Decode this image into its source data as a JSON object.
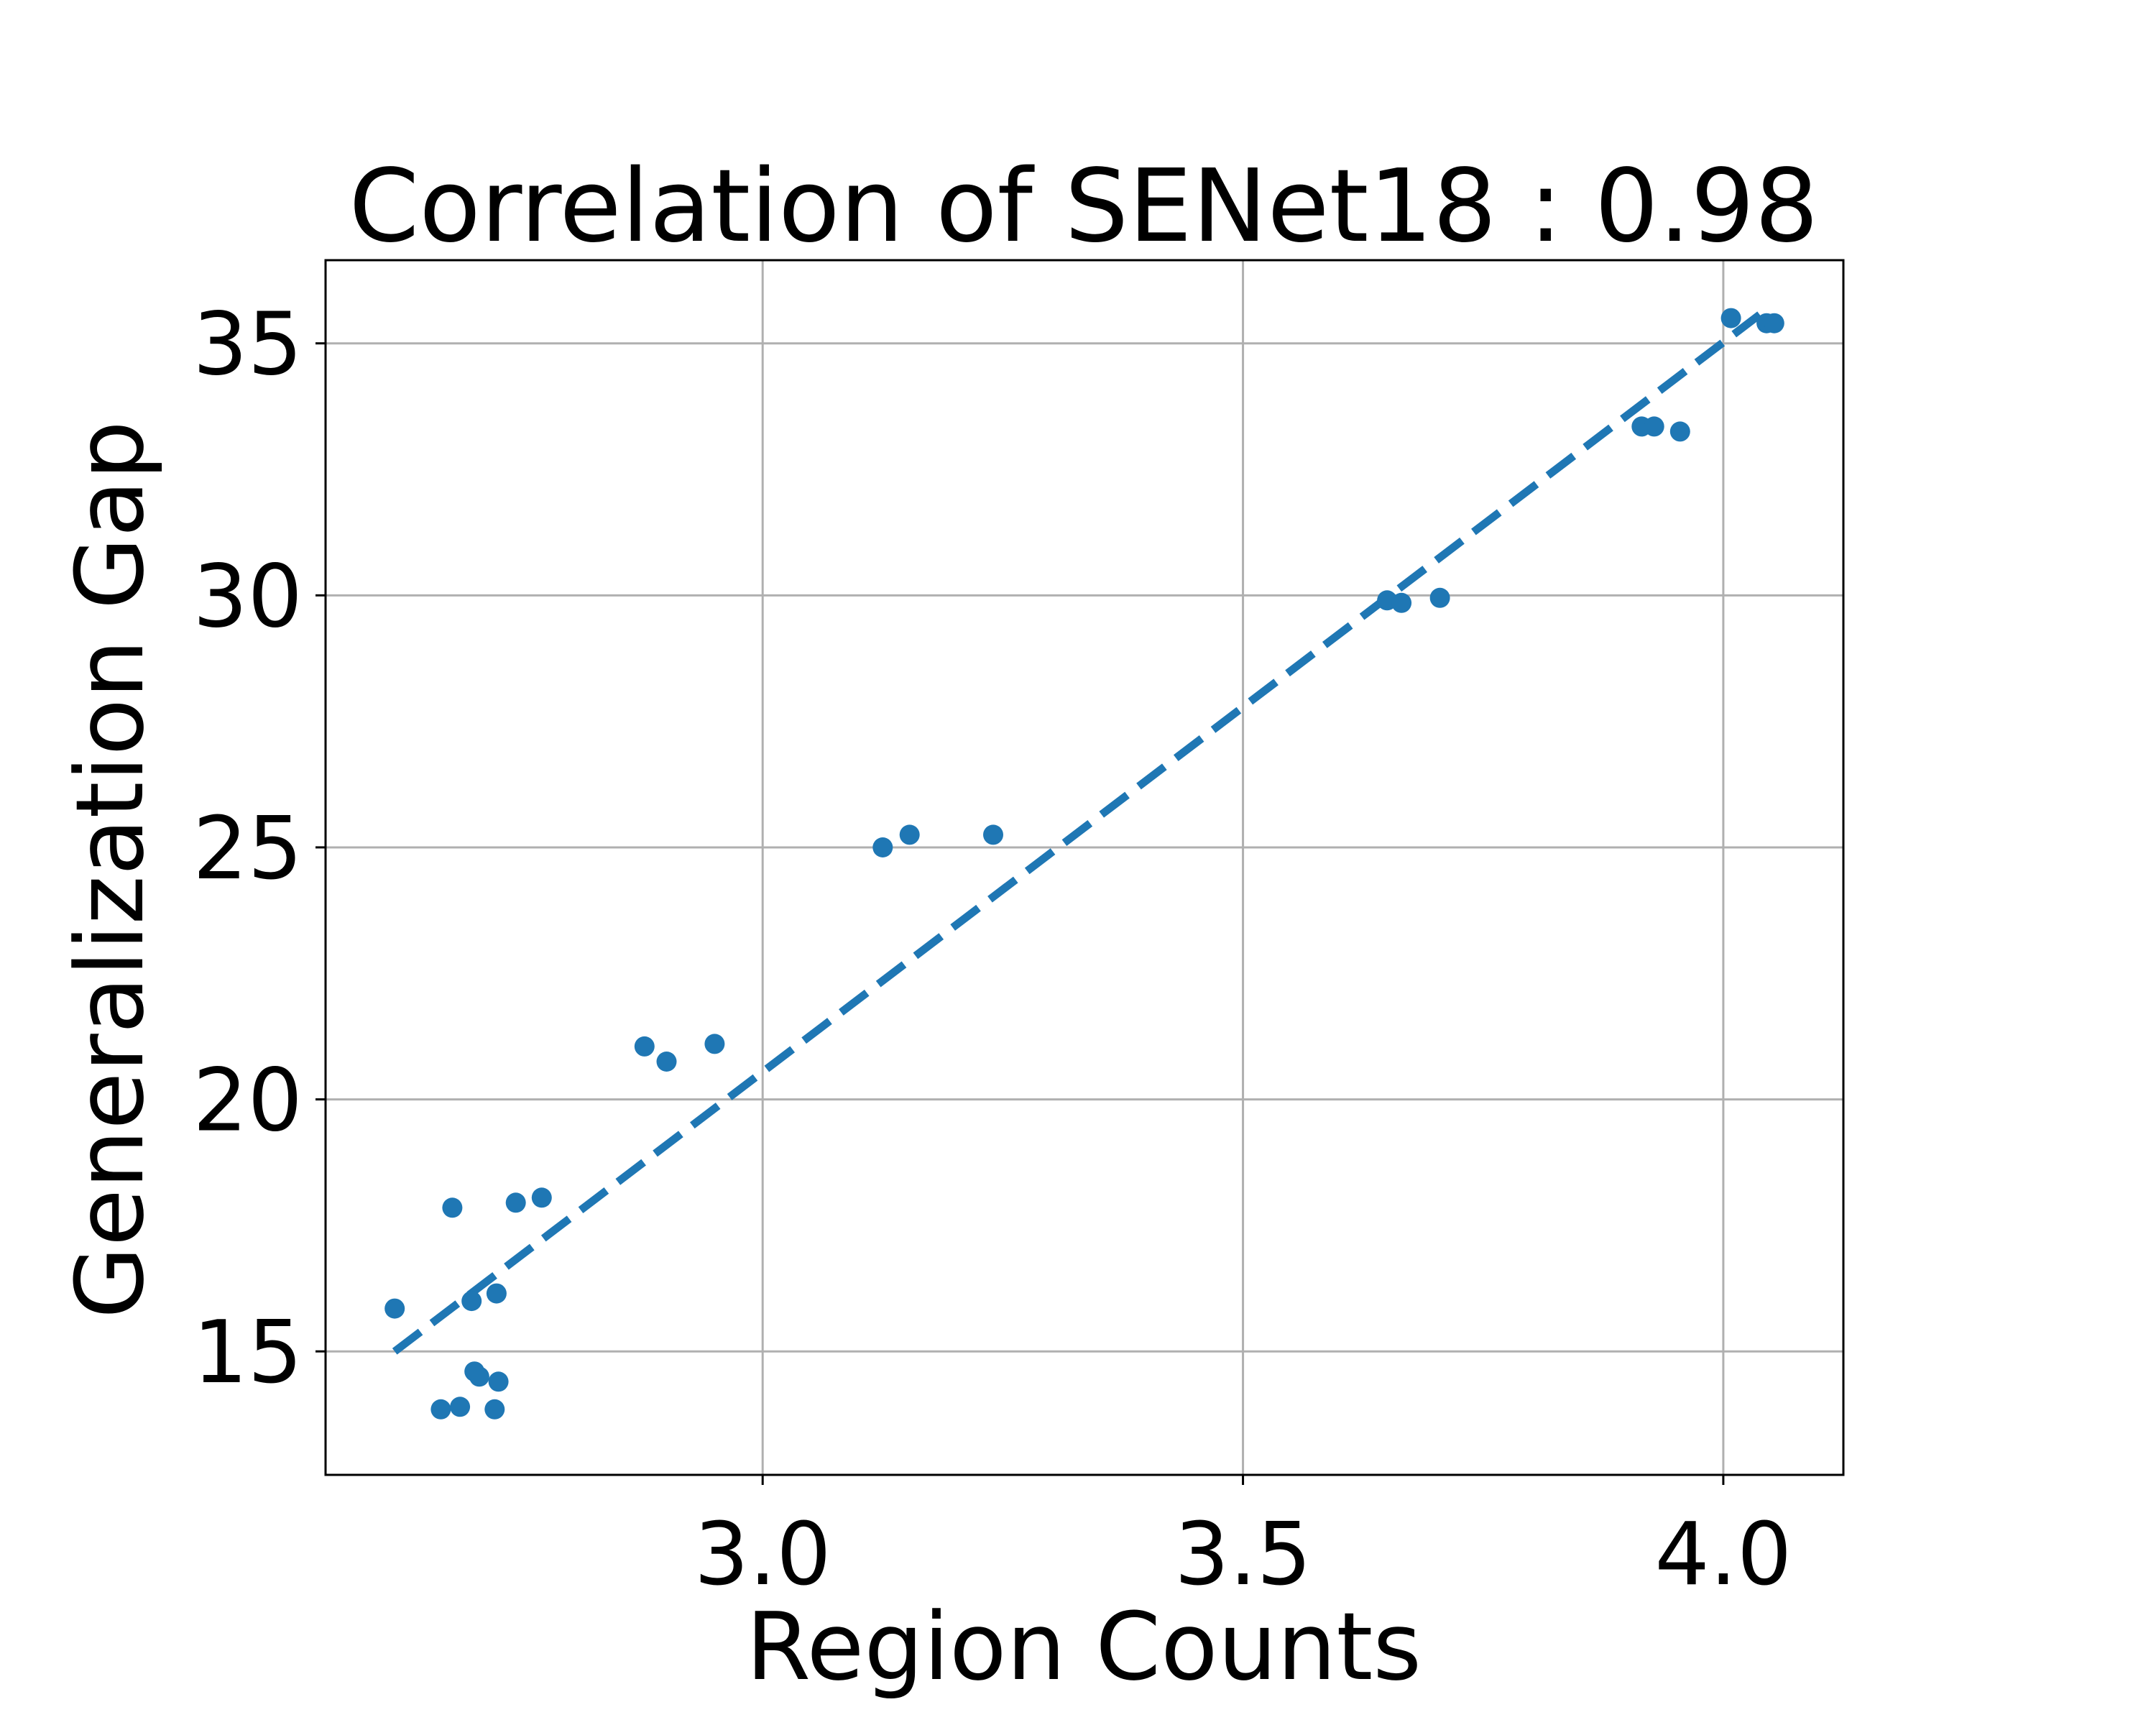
{
  "chart_data": {
    "type": "scatter",
    "title": "Correlation of SENet18 : 0.98",
    "xlabel": "Region Counts",
    "ylabel": "Generalization Gap",
    "xlim": [
      2.545,
      4.125
    ],
    "ylim": [
      12.55,
      36.65
    ],
    "xticks": [
      3.0,
      3.5,
      4.0
    ],
    "xtick_labels": [
      "3.0",
      "3.5",
      "4.0"
    ],
    "yticks": [
      15,
      20,
      25,
      30,
      35
    ],
    "ytick_labels": [
      "15",
      "20",
      "25",
      "30",
      "35"
    ],
    "grid": true,
    "color": "#1f77b4",
    "series": [
      {
        "type": "scatter",
        "points": [
          [
            2.617,
            15.85
          ],
          [
            2.677,
            17.85
          ],
          [
            2.697,
            16.0
          ],
          [
            2.723,
            16.15
          ],
          [
            2.743,
            17.95
          ],
          [
            2.77,
            18.05
          ],
          [
            2.7,
            14.6
          ],
          [
            2.705,
            14.5
          ],
          [
            2.725,
            14.4
          ],
          [
            2.665,
            13.85
          ],
          [
            2.685,
            13.9
          ],
          [
            2.721,
            13.85
          ],
          [
            2.877,
            21.05
          ],
          [
            2.9,
            20.75
          ],
          [
            2.95,
            21.1
          ],
          [
            3.125,
            25.0
          ],
          [
            3.153,
            25.25
          ],
          [
            3.24,
            25.25
          ],
          [
            3.65,
            29.9
          ],
          [
            3.665,
            29.85
          ],
          [
            3.705,
            29.95
          ],
          [
            3.915,
            33.35
          ],
          [
            3.928,
            33.35
          ],
          [
            3.955,
            33.25
          ],
          [
            4.008,
            35.5
          ],
          [
            4.045,
            35.4
          ],
          [
            4.053,
            35.4
          ]
        ]
      },
      {
        "type": "line",
        "style": "dashed",
        "points": [
          [
            2.617,
            15.0
          ],
          [
            4.04,
            35.6
          ]
        ]
      }
    ]
  }
}
